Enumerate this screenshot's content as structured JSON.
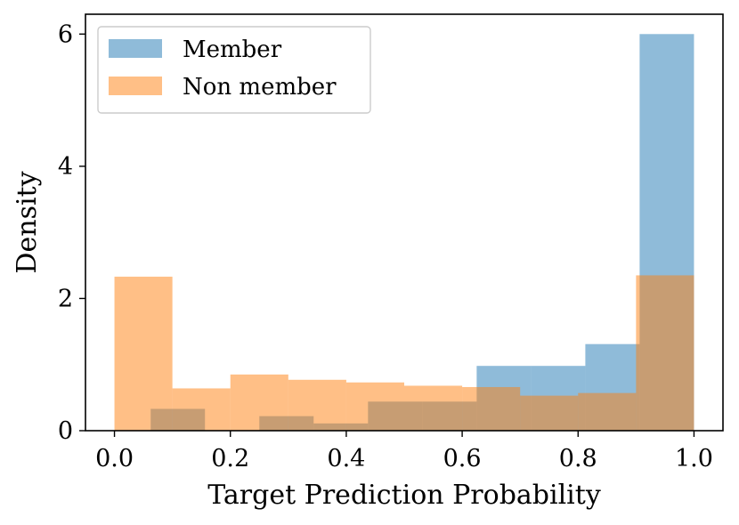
{
  "chart_data": {
    "type": "histogram",
    "title": "",
    "xlabel": "Target Prediction Probability",
    "ylabel": "Density",
    "xlim": [
      -0.05,
      1.05
    ],
    "ylim": [
      0,
      6.3
    ],
    "xticks": [
      "0.0",
      "0.2",
      "0.4",
      "0.6",
      "0.8",
      "1.0"
    ],
    "xtick_values": [
      0.0,
      0.2,
      0.4,
      0.6,
      0.8,
      1.0
    ],
    "yticks": [
      "0",
      "2",
      "4",
      "6"
    ],
    "ytick_values": [
      0,
      2,
      4,
      6
    ],
    "grid": false,
    "legend": "top-left",
    "series": [
      {
        "name": "Member",
        "color": "#1f77b4",
        "alpha": 0.5,
        "bins": [
          {
            "x0": 0.0625,
            "x1": 0.1562,
            "y": 0.33
          },
          {
            "x0": 0.1562,
            "x1": 0.25,
            "y": 0.0
          },
          {
            "x0": 0.25,
            "x1": 0.3437,
            "y": 0.22
          },
          {
            "x0": 0.3437,
            "x1": 0.4375,
            "y": 0.11
          },
          {
            "x0": 0.4375,
            "x1": 0.5312,
            "y": 0.44
          },
          {
            "x0": 0.5312,
            "x1": 0.625,
            "y": 0.44
          },
          {
            "x0": 0.625,
            "x1": 0.7187,
            "y": 0.98
          },
          {
            "x0": 0.7187,
            "x1": 0.8125,
            "y": 0.98
          },
          {
            "x0": 0.8125,
            "x1": 0.9062,
            "y": 1.31
          },
          {
            "x0": 0.9062,
            "x1": 1.0,
            "y": 6.0
          }
        ]
      },
      {
        "name": "Non member",
        "color": "#ff7f0e",
        "alpha": 0.5,
        "bins": [
          {
            "x0": 0.0,
            "x1": 0.1,
            "y": 2.33
          },
          {
            "x0": 0.1,
            "x1": 0.2,
            "y": 0.64
          },
          {
            "x0": 0.2,
            "x1": 0.3,
            "y": 0.85
          },
          {
            "x0": 0.3,
            "x1": 0.4,
            "y": 0.77
          },
          {
            "x0": 0.4,
            "x1": 0.5,
            "y": 0.73
          },
          {
            "x0": 0.5,
            "x1": 0.6,
            "y": 0.68
          },
          {
            "x0": 0.6,
            "x1": 0.7,
            "y": 0.66
          },
          {
            "x0": 0.7,
            "x1": 0.8,
            "y": 0.53
          },
          {
            "x0": 0.8,
            "x1": 0.9,
            "y": 0.57
          },
          {
            "x0": 0.9,
            "x1": 1.0,
            "y": 2.35
          }
        ]
      }
    ]
  }
}
